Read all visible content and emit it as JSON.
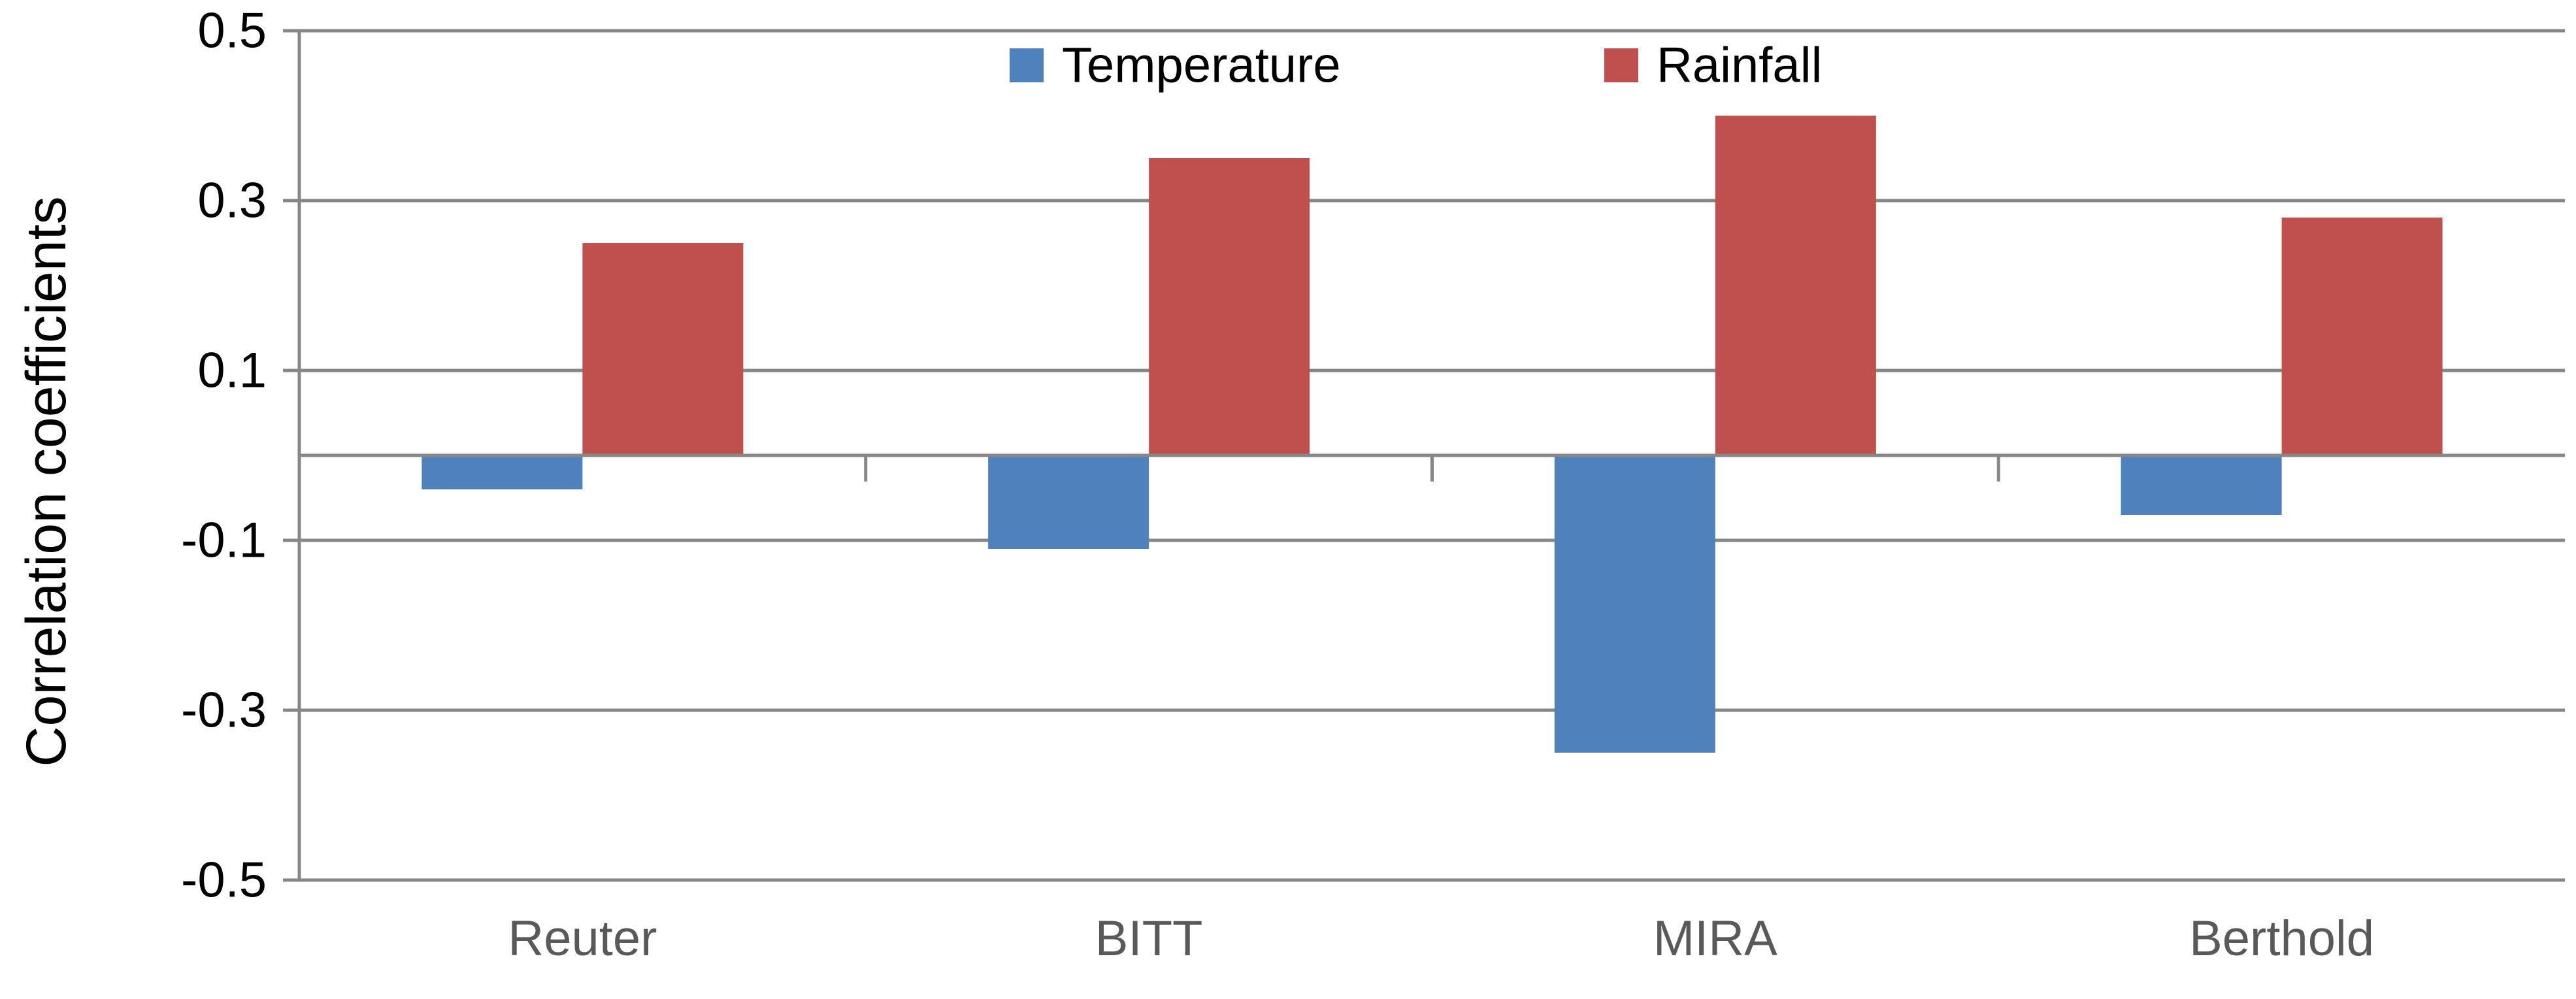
{
  "chart_data": {
    "type": "bar",
    "title": "",
    "xlabel": "",
    "ylabel": "Correlation coefficients",
    "categories": [
      "Reuter",
      "BITT",
      "MIRA",
      "Berthold"
    ],
    "series": [
      {
        "name": "Temperature",
        "color": "#4F81BD",
        "values": [
          -0.04,
          -0.11,
          -0.35,
          -0.07
        ]
      },
      {
        "name": "Rainfall",
        "color": "#C0504D",
        "values": [
          0.25,
          0.35,
          0.4,
          0.28
        ]
      }
    ],
    "ylim": [
      -0.5,
      0.5
    ],
    "yticks": [
      0.5,
      0.3,
      0.1,
      -0.1,
      -0.3,
      -0.5
    ],
    "ytick_labels": [
      "0.5",
      "0.3",
      "0.1",
      "-0.1",
      "-0.3",
      "-0.5"
    ],
    "grid": true,
    "legend_position": "top-center",
    "gridline_color": "#868686",
    "axis_color": "#868686",
    "label_color": "#000000",
    "category_label_color": "#595959"
  }
}
